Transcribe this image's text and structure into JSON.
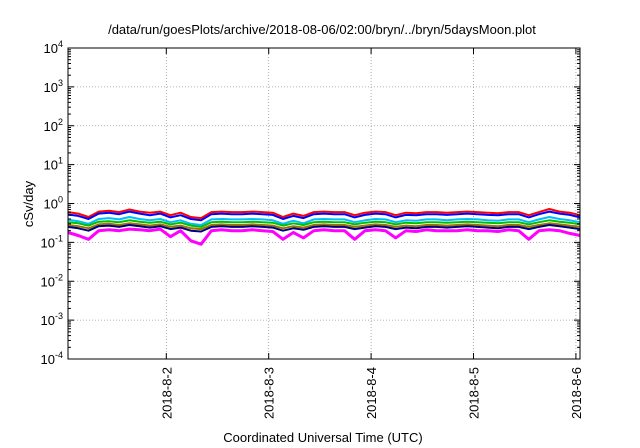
{
  "chart_data": {
    "type": "line",
    "title": "/data/run/goesPlots/archive/2018-08-06/02:00/bryn/../bryn/5daysMoon.plot",
    "xlabel": "Coordinated Universal Time (UTC)",
    "ylabel": "cSv/day",
    "yscale": "log",
    "ylim": [
      0.0001,
      10000
    ],
    "xlim": [
      0,
      5.0
    ],
    "grid": true,
    "yticks": [
      {
        "base": "10",
        "exp": "-4",
        "value": 0.0001
      },
      {
        "base": "10",
        "exp": "-3",
        "value": 0.001
      },
      {
        "base": "10",
        "exp": "-2",
        "value": 0.01
      },
      {
        "base": "10",
        "exp": "-1",
        "value": 0.1
      },
      {
        "base": "10",
        "exp": "0",
        "value": 1
      },
      {
        "base": "10",
        "exp": "1",
        "value": 10
      },
      {
        "base": "10",
        "exp": "2",
        "value": 100
      },
      {
        "base": "10",
        "exp": "3",
        "value": 1000
      },
      {
        "base": "10",
        "exp": "4",
        "value": 10000
      }
    ],
    "xticks": [
      {
        "label": "2018-8-2",
        "value": 0.96
      },
      {
        "label": "2018-8-3",
        "value": 1.96
      },
      {
        "label": "2018-8-4",
        "value": 2.96
      },
      {
        "label": "2018-8-5",
        "value": 3.96
      },
      {
        "label": "2018-8-6",
        "value": 4.96
      }
    ],
    "series": [
      {
        "color": "#ff00ff",
        "x": [
          0.0,
          0.1,
          0.2,
          0.3,
          0.4,
          0.5,
          0.6,
          0.7,
          0.8,
          0.9,
          1.0,
          1.1,
          1.2,
          1.3,
          1.4,
          1.5,
          1.6,
          1.7,
          1.8,
          1.9,
          2.0,
          2.1,
          2.2,
          2.3,
          2.4,
          2.5,
          2.6,
          2.7,
          2.8,
          2.9,
          3.0,
          3.1,
          3.2,
          3.3,
          3.4,
          3.5,
          3.6,
          3.7,
          3.8,
          3.9,
          4.0,
          4.1,
          4.2,
          4.3,
          4.4,
          4.5,
          4.6,
          4.7,
          4.8,
          4.9,
          5.0
        ],
        "y": [
          0.18,
          0.15,
          0.12,
          0.2,
          0.21,
          0.2,
          0.22,
          0.21,
          0.2,
          0.22,
          0.14,
          0.2,
          0.11,
          0.09,
          0.2,
          0.21,
          0.2,
          0.2,
          0.21,
          0.2,
          0.19,
          0.12,
          0.18,
          0.13,
          0.2,
          0.21,
          0.2,
          0.2,
          0.12,
          0.2,
          0.21,
          0.2,
          0.13,
          0.2,
          0.19,
          0.21,
          0.2,
          0.2,
          0.2,
          0.21,
          0.2,
          0.2,
          0.19,
          0.21,
          0.2,
          0.12,
          0.2,
          0.21,
          0.2,
          0.17,
          0.15
        ]
      },
      {
        "color": "#ff0000",
        "x": [
          0.0,
          0.1,
          0.2,
          0.3,
          0.4,
          0.5,
          0.6,
          0.7,
          0.8,
          0.9,
          1.0,
          1.1,
          1.2,
          1.3,
          1.4,
          1.5,
          1.6,
          1.7,
          1.8,
          1.9,
          2.0,
          2.1,
          2.2,
          2.3,
          2.4,
          2.5,
          2.6,
          2.7,
          2.8,
          2.9,
          3.0,
          3.1,
          3.2,
          3.3,
          3.4,
          3.5,
          3.6,
          3.7,
          3.8,
          3.9,
          4.0,
          4.1,
          4.2,
          4.3,
          4.4,
          4.5,
          4.6,
          4.7,
          4.8,
          4.9,
          5.0
        ],
        "y": [
          0.6,
          0.55,
          0.45,
          0.62,
          0.65,
          0.6,
          0.7,
          0.62,
          0.58,
          0.62,
          0.5,
          0.58,
          0.45,
          0.42,
          0.6,
          0.62,
          0.6,
          0.6,
          0.62,
          0.6,
          0.58,
          0.45,
          0.55,
          0.48,
          0.6,
          0.62,
          0.6,
          0.6,
          0.5,
          0.58,
          0.62,
          0.6,
          0.5,
          0.58,
          0.56,
          0.6,
          0.6,
          0.58,
          0.6,
          0.62,
          0.6,
          0.58,
          0.56,
          0.6,
          0.6,
          0.5,
          0.6,
          0.72,
          0.62,
          0.58,
          0.5
        ]
      },
      {
        "color": "#0000ff",
        "x": [
          0.0,
          0.1,
          0.2,
          0.3,
          0.4,
          0.5,
          0.6,
          0.7,
          0.8,
          0.9,
          1.0,
          1.1,
          1.2,
          1.3,
          1.4,
          1.5,
          1.6,
          1.7,
          1.8,
          1.9,
          2.0,
          2.1,
          2.2,
          2.3,
          2.4,
          2.5,
          2.6,
          2.7,
          2.8,
          2.9,
          3.0,
          3.1,
          3.2,
          3.3,
          3.4,
          3.5,
          3.6,
          3.7,
          3.8,
          3.9,
          4.0,
          4.1,
          4.2,
          4.3,
          4.4,
          4.5,
          4.6,
          4.7,
          4.8,
          4.9,
          5.0
        ],
        "y": [
          0.52,
          0.48,
          0.4,
          0.55,
          0.58,
          0.53,
          0.62,
          0.55,
          0.5,
          0.55,
          0.44,
          0.5,
          0.4,
          0.37,
          0.53,
          0.55,
          0.53,
          0.53,
          0.55,
          0.53,
          0.51,
          0.4,
          0.48,
          0.42,
          0.53,
          0.55,
          0.53,
          0.53,
          0.44,
          0.51,
          0.55,
          0.53,
          0.44,
          0.51,
          0.5,
          0.53,
          0.53,
          0.51,
          0.53,
          0.55,
          0.53,
          0.51,
          0.5,
          0.53,
          0.53,
          0.44,
          0.53,
          0.62,
          0.55,
          0.51,
          0.44
        ]
      },
      {
        "color": "#00bfff",
        "x": [
          0.0,
          0.1,
          0.2,
          0.3,
          0.4,
          0.5,
          0.6,
          0.7,
          0.8,
          0.9,
          1.0,
          1.1,
          1.2,
          1.3,
          1.4,
          1.5,
          1.6,
          1.7,
          1.8,
          1.9,
          2.0,
          2.1,
          2.2,
          2.3,
          2.4,
          2.5,
          2.6,
          2.7,
          2.8,
          2.9,
          3.0,
          3.1,
          3.2,
          3.3,
          3.4,
          3.5,
          3.6,
          3.7,
          3.8,
          3.9,
          4.0,
          4.1,
          4.2,
          4.3,
          4.4,
          4.5,
          4.6,
          4.7,
          4.8,
          4.9,
          5.0
        ],
        "y": [
          0.38,
          0.35,
          0.3,
          0.4,
          0.42,
          0.39,
          0.45,
          0.4,
          0.37,
          0.4,
          0.33,
          0.37,
          0.3,
          0.28,
          0.39,
          0.4,
          0.39,
          0.39,
          0.4,
          0.39,
          0.37,
          0.3,
          0.36,
          0.31,
          0.39,
          0.4,
          0.39,
          0.39,
          0.33,
          0.37,
          0.4,
          0.39,
          0.33,
          0.37,
          0.36,
          0.39,
          0.39,
          0.37,
          0.39,
          0.4,
          0.39,
          0.37,
          0.36,
          0.39,
          0.39,
          0.33,
          0.39,
          0.45,
          0.4,
          0.37,
          0.33
        ]
      },
      {
        "color": "#00c000",
        "x": [
          0.0,
          0.1,
          0.2,
          0.3,
          0.4,
          0.5,
          0.6,
          0.7,
          0.8,
          0.9,
          1.0,
          1.1,
          1.2,
          1.3,
          1.4,
          1.5,
          1.6,
          1.7,
          1.8,
          1.9,
          2.0,
          2.1,
          2.2,
          2.3,
          2.4,
          2.5,
          2.6,
          2.7,
          2.8,
          2.9,
          3.0,
          3.1,
          3.2,
          3.3,
          3.4,
          3.5,
          3.6,
          3.7,
          3.8,
          3.9,
          4.0,
          4.1,
          4.2,
          4.3,
          4.4,
          4.5,
          4.6,
          4.7,
          4.8,
          4.9,
          5.0
        ],
        "y": [
          0.33,
          0.31,
          0.27,
          0.34,
          0.35,
          0.33,
          0.37,
          0.34,
          0.32,
          0.34,
          0.29,
          0.32,
          0.27,
          0.25,
          0.33,
          0.34,
          0.33,
          0.33,
          0.34,
          0.33,
          0.32,
          0.27,
          0.31,
          0.28,
          0.33,
          0.34,
          0.33,
          0.33,
          0.29,
          0.32,
          0.34,
          0.33,
          0.29,
          0.32,
          0.31,
          0.33,
          0.33,
          0.32,
          0.33,
          0.34,
          0.33,
          0.32,
          0.31,
          0.33,
          0.33,
          0.29,
          0.33,
          0.37,
          0.34,
          0.32,
          0.29
        ]
      },
      {
        "color": "#a07000",
        "x": [
          0.0,
          0.1,
          0.2,
          0.3,
          0.4,
          0.5,
          0.6,
          0.7,
          0.8,
          0.9,
          1.0,
          1.1,
          1.2,
          1.3,
          1.4,
          1.5,
          1.6,
          1.7,
          1.8,
          1.9,
          2.0,
          2.1,
          2.2,
          2.3,
          2.4,
          2.5,
          2.6,
          2.7,
          2.8,
          2.9,
          3.0,
          3.1,
          3.2,
          3.3,
          3.4,
          3.5,
          3.6,
          3.7,
          3.8,
          3.9,
          4.0,
          4.1,
          4.2,
          4.3,
          4.4,
          4.5,
          4.6,
          4.7,
          4.8,
          4.9,
          5.0
        ],
        "y": [
          0.28,
          0.26,
          0.23,
          0.29,
          0.3,
          0.28,
          0.31,
          0.29,
          0.27,
          0.29,
          0.25,
          0.27,
          0.23,
          0.22,
          0.28,
          0.29,
          0.28,
          0.28,
          0.29,
          0.28,
          0.27,
          0.23,
          0.26,
          0.24,
          0.28,
          0.29,
          0.28,
          0.28,
          0.25,
          0.27,
          0.29,
          0.28,
          0.25,
          0.27,
          0.26,
          0.28,
          0.28,
          0.27,
          0.28,
          0.29,
          0.28,
          0.27,
          0.26,
          0.28,
          0.28,
          0.25,
          0.28,
          0.31,
          0.29,
          0.27,
          0.25
        ]
      },
      {
        "color": "#000080",
        "x": [
          0.0,
          0.1,
          0.2,
          0.3,
          0.4,
          0.5,
          0.6,
          0.7,
          0.8,
          0.9,
          1.0,
          1.1,
          1.2,
          1.3,
          1.4,
          1.5,
          1.6,
          1.7,
          1.8,
          1.9,
          2.0,
          2.1,
          2.2,
          2.3,
          2.4,
          2.5,
          2.6,
          2.7,
          2.8,
          2.9,
          3.0,
          3.1,
          3.2,
          3.3,
          3.4,
          3.5,
          3.6,
          3.7,
          3.8,
          3.9,
          4.0,
          4.1,
          4.2,
          4.3,
          4.4,
          4.5,
          4.6,
          4.7,
          4.8,
          4.9,
          5.0
        ],
        "y": [
          0.25,
          0.23,
          0.2,
          0.26,
          0.27,
          0.25,
          0.28,
          0.26,
          0.24,
          0.26,
          0.22,
          0.24,
          0.2,
          0.19,
          0.25,
          0.26,
          0.25,
          0.25,
          0.26,
          0.25,
          0.24,
          0.2,
          0.23,
          0.21,
          0.25,
          0.26,
          0.25,
          0.25,
          0.22,
          0.24,
          0.26,
          0.25,
          0.22,
          0.24,
          0.23,
          0.25,
          0.25,
          0.24,
          0.25,
          0.26,
          0.25,
          0.24,
          0.23,
          0.25,
          0.25,
          0.22,
          0.25,
          0.28,
          0.26,
          0.24,
          0.22
        ]
      }
    ]
  }
}
